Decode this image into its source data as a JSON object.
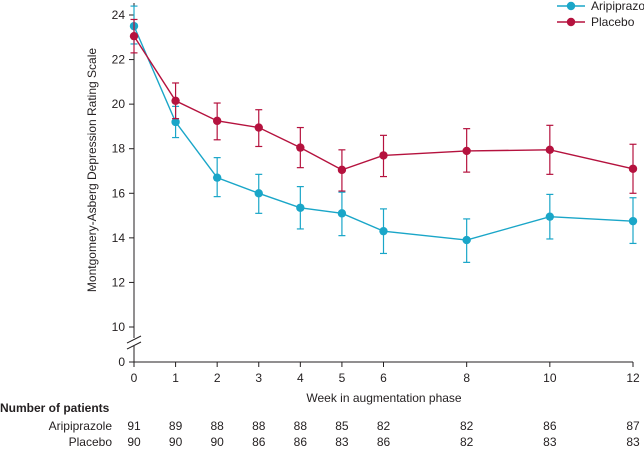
{
  "chart_data": {
    "type": "line",
    "xlabel": "Week in augmentation phase",
    "ylabel": "Montgomery-Asberg Depression Rating Scale",
    "x": [
      0,
      1,
      2,
      3,
      4,
      5,
      6,
      8,
      10,
      12
    ],
    "x_ticks": [
      0,
      1,
      2,
      3,
      4,
      5,
      6,
      8,
      10,
      12
    ],
    "y_ticks": [
      0,
      10,
      12,
      14,
      16,
      18,
      20,
      22,
      24
    ],
    "ylim": [
      10,
      24.5
    ],
    "axis_break": true,
    "legend_position": "top-right",
    "series": [
      {
        "name": "Aripiprazole",
        "color": "#1aa6c8",
        "marker": "circle",
        "values": [
          23.5,
          19.2,
          16.7,
          16.0,
          15.35,
          15.1,
          14.3,
          13.9,
          14.95,
          14.75
        ],
        "err_low": [
          22.7,
          18.5,
          15.85,
          15.1,
          14.4,
          14.1,
          13.3,
          12.9,
          13.95,
          13.75
        ],
        "err_high": [
          24.4,
          19.9,
          17.6,
          16.85,
          16.3,
          16.05,
          15.3,
          14.85,
          15.95,
          15.8
        ]
      },
      {
        "name": "Placebo",
        "color": "#b5123e",
        "marker": "circle",
        "values": [
          23.05,
          20.15,
          19.25,
          18.95,
          18.05,
          17.05,
          17.7,
          17.9,
          17.95,
          17.1
        ],
        "err_low": [
          22.3,
          19.35,
          18.4,
          18.1,
          17.15,
          16.1,
          16.75,
          16.95,
          16.85,
          16.0
        ],
        "err_high": [
          23.8,
          20.95,
          20.05,
          19.75,
          18.95,
          17.95,
          18.6,
          18.9,
          19.05,
          18.2
        ]
      }
    ],
    "patients_table": {
      "heading": "Number of patients",
      "rows": [
        {
          "label": "Aripiprazole",
          "values": [
            91,
            89,
            88,
            88,
            88,
            85,
            82,
            82,
            86,
            87
          ]
        },
        {
          "label": "Placebo",
          "values": [
            90,
            90,
            90,
            86,
            86,
            83,
            86,
            82,
            83,
            83
          ]
        }
      ]
    }
  }
}
